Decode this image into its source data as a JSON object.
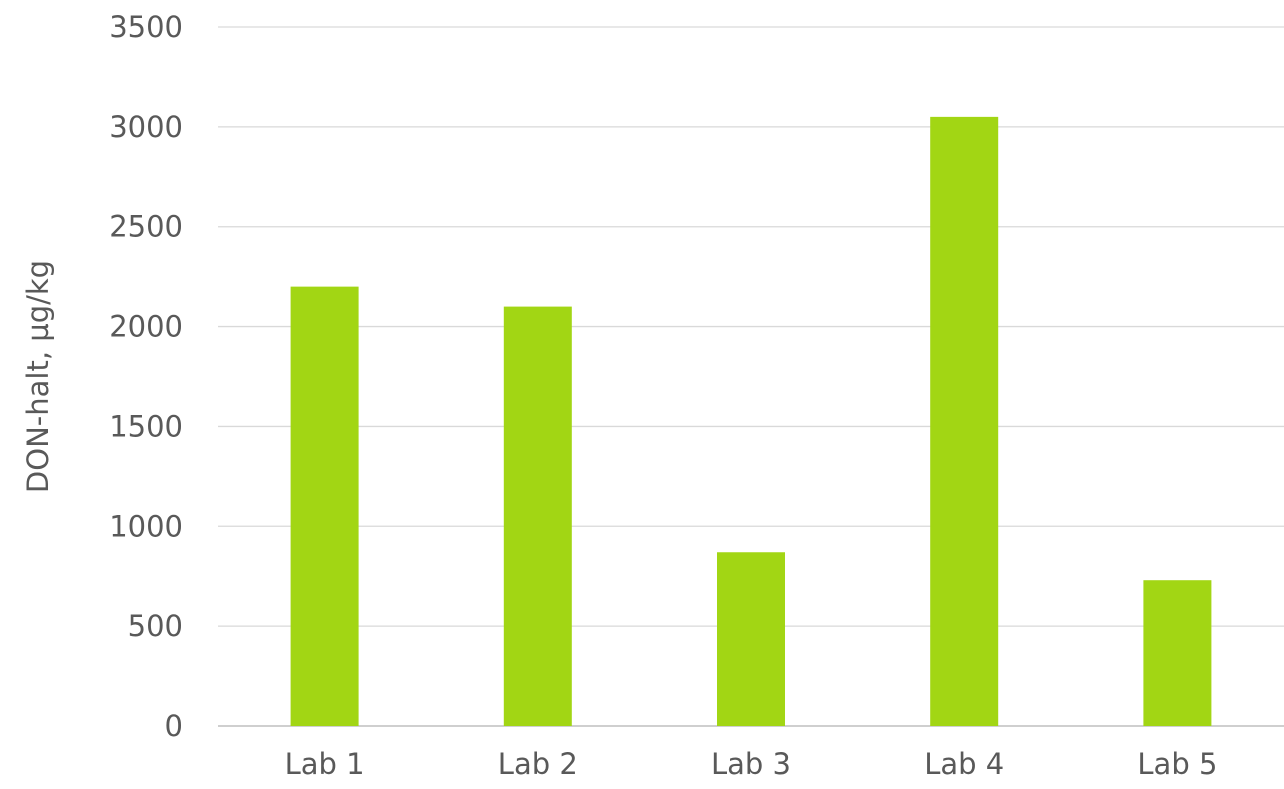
{
  "chart_data": {
    "type": "bar",
    "title": "",
    "xlabel": "",
    "ylabel": "DON-halt, µg/kg",
    "categories": [
      "Lab 1",
      "Lab 2",
      "Lab 3",
      "Lab 4",
      "Lab 5"
    ],
    "series": [
      {
        "values": [
          2200,
          2100,
          870,
          3050,
          730
        ]
      }
    ],
    "ylim": [
      0,
      3500
    ],
    "yticks": [
      0,
      500,
      1000,
      1500,
      2000,
      2500,
      3000,
      3500
    ],
    "grid": true,
    "legend": "none",
    "bar_color": "#a2d614"
  }
}
